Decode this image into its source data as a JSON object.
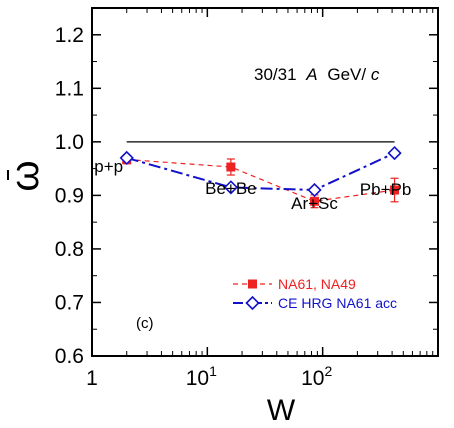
{
  "chart_data": {
    "type": "line",
    "xscale": "log",
    "xlim": [
      1,
      1000
    ],
    "ylim": [
      0.6,
      1.25
    ],
    "xlabel": "W",
    "ylabel": "ω",
    "xticks": [
      {
        "value": 1,
        "label": "1",
        "sup": ""
      },
      {
        "value": 10,
        "label": "10",
        "sup": "1"
      },
      {
        "value": 100,
        "label": "10",
        "sup": "2"
      }
    ],
    "yticks": [
      0.6,
      0.7,
      0.8,
      0.9,
      1.0,
      1.1,
      1.2
    ],
    "ytick_labels": [
      "0.6",
      "0.7",
      "0.8",
      "0.9",
      "1.0",
      "1.1",
      "1.2"
    ],
    "reference_line": {
      "y": 1.0,
      "x_from": 2,
      "x_to": 420,
      "color": "#000000"
    },
    "energy_label": {
      "value": "30/31",
      "a": "A",
      "unit": "GeV/",
      "c": "c"
    },
    "panel_label": "(c)",
    "systems": [
      {
        "label": "p+p",
        "x": 2
      },
      {
        "label": "Be+Be",
        "x": 16
      },
      {
        "label": "Ar+Sc",
        "x": 85
      },
      {
        "label": "Pb+Pb",
        "x": 420
      }
    ],
    "series": [
      {
        "name": "NA61, NA49",
        "color": "#ee2222",
        "marker": "filled-square",
        "style": "dashed",
        "x": [
          2,
          16,
          85,
          420
        ],
        "y": [
          0.967,
          0.953,
          0.889,
          0.91
        ],
        "yerr": [
          0.008,
          0.015,
          0.012,
          0.022
        ]
      },
      {
        "name": "CE HRG NA61 acc",
        "color": "#1111cc",
        "marker": "open-diamond",
        "style": "dashdot",
        "x": [
          2,
          16,
          85,
          420
        ],
        "y": [
          0.97,
          0.915,
          0.91,
          0.979
        ],
        "yerr": [
          0,
          0,
          0,
          0
        ]
      }
    ]
  }
}
